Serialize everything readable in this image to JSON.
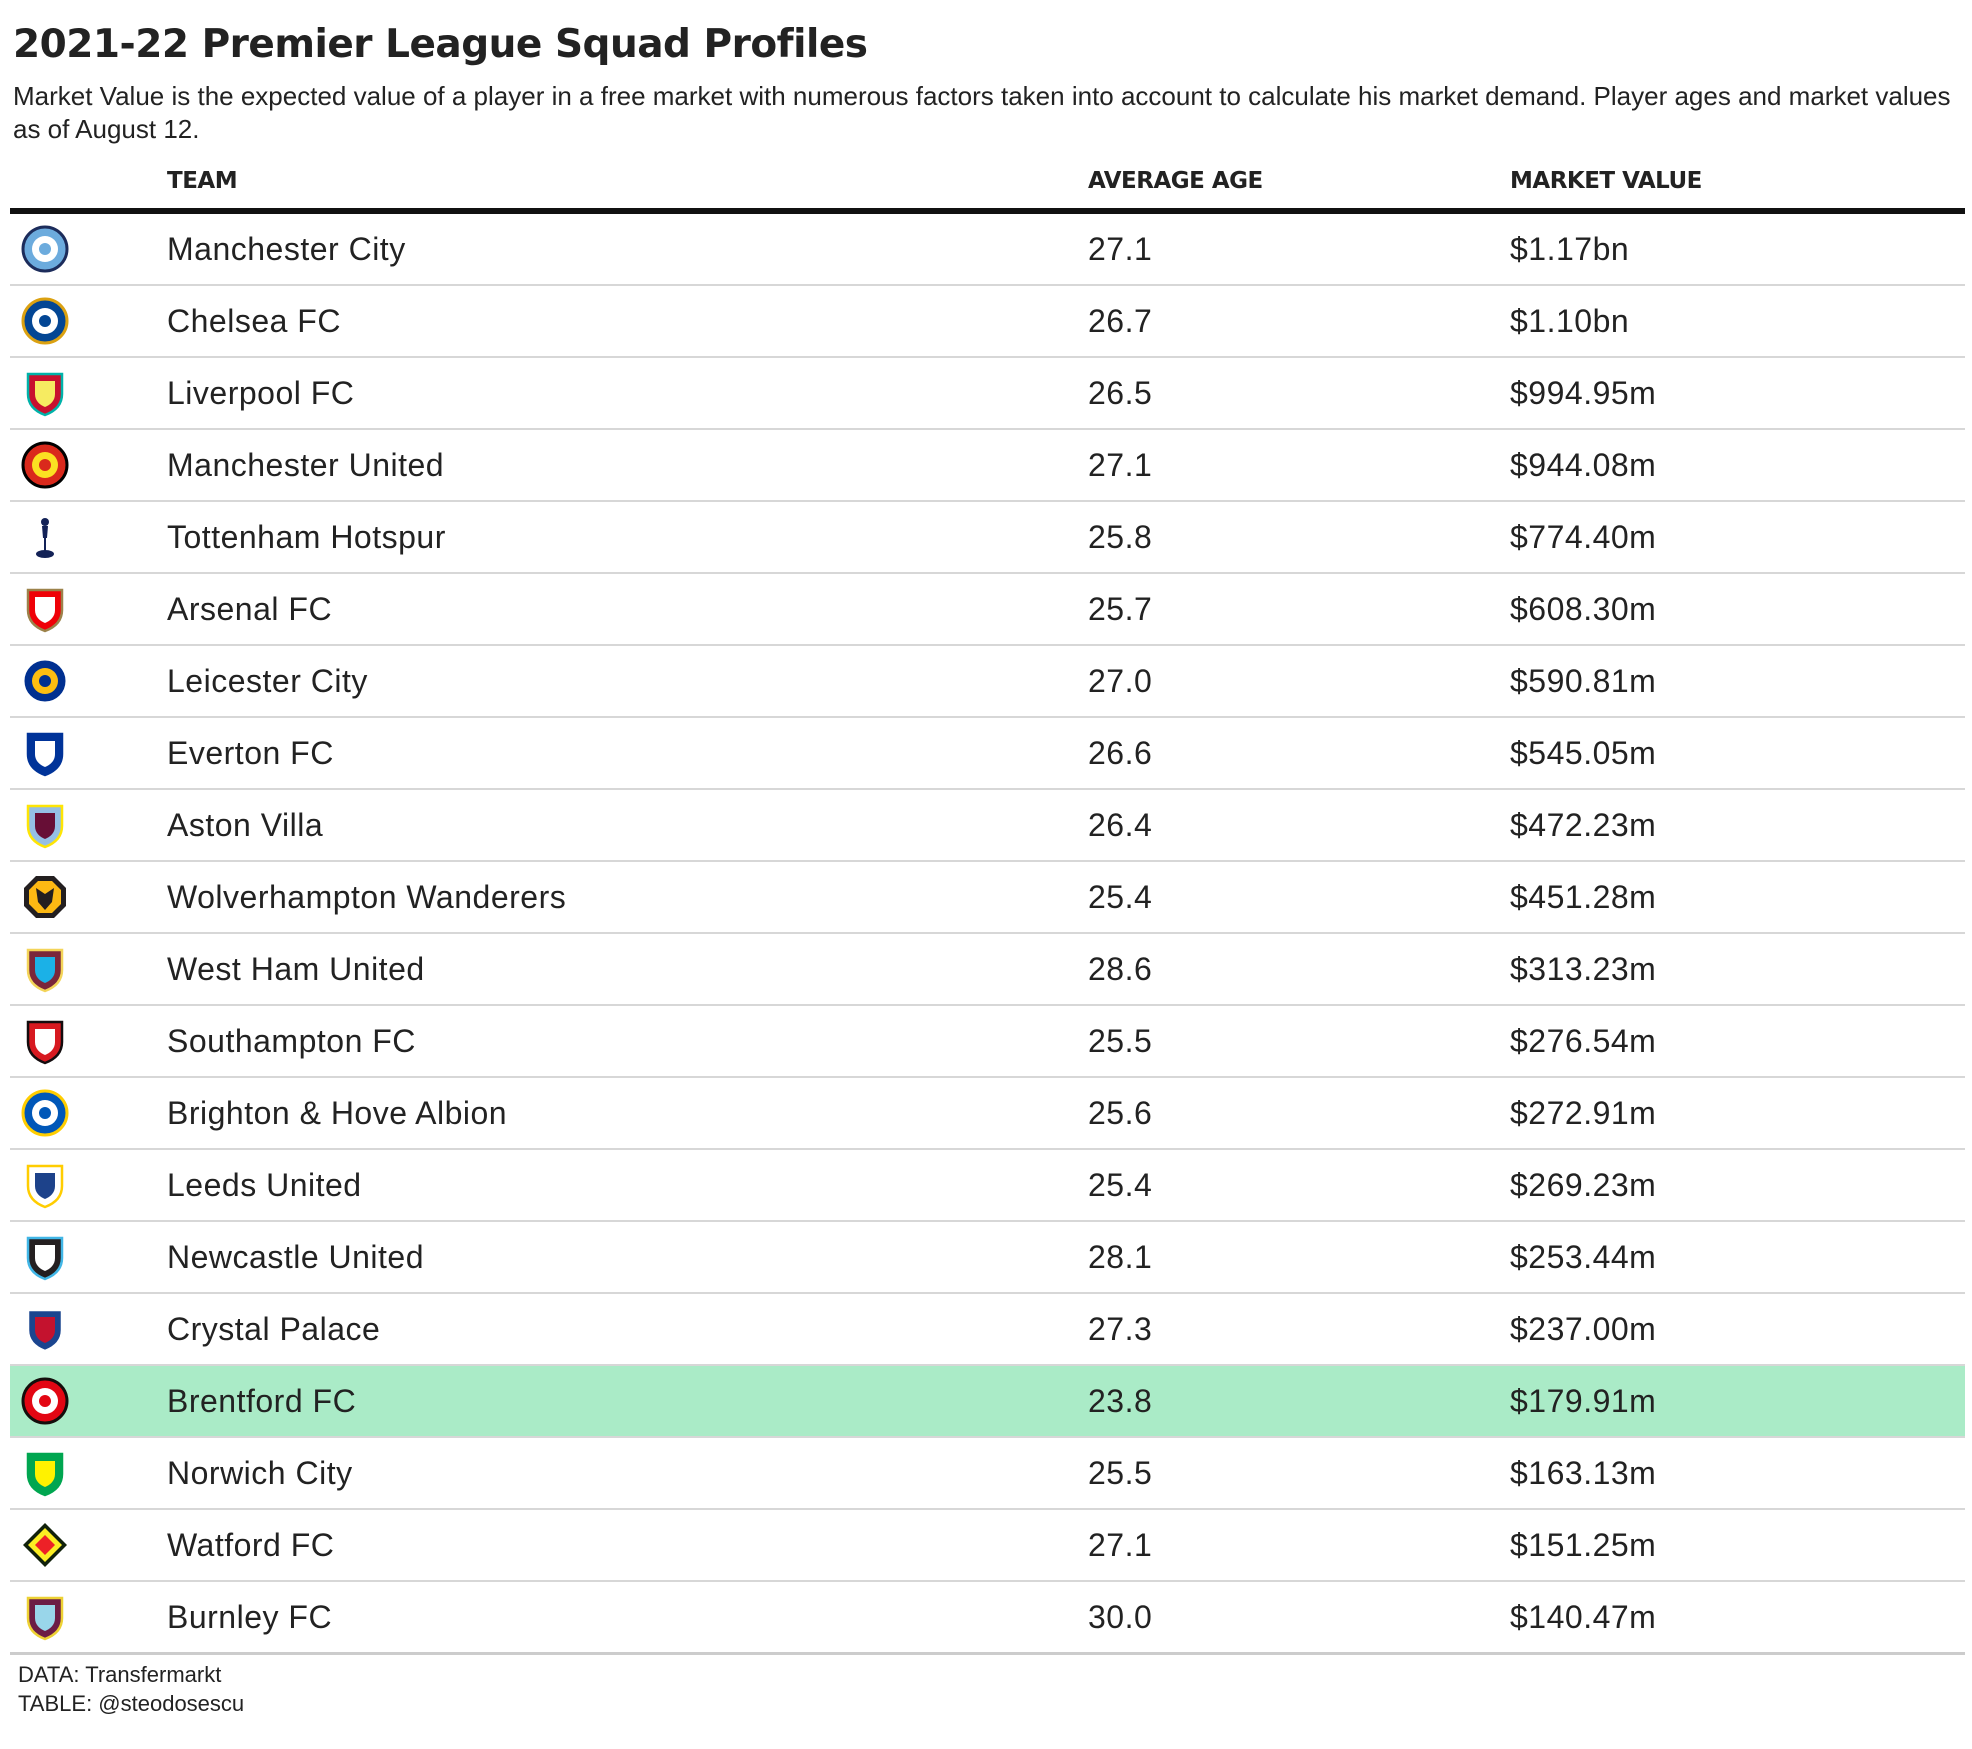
{
  "title": "2021-22 Premier League Squad Profiles",
  "subtitle": "Market Value is the expected value of a player in a free market with numerous factors taken into account to calculate his market demand. Player ages and market values as of August 12.",
  "columns": {
    "team": "TEAM",
    "age": "AVERAGE AGE",
    "market_value": "MARKET VALUE"
  },
  "highlight_color": "#aaebc7",
  "rows": [
    {
      "team": "Manchester City",
      "age": "27.1",
      "market_value": "$1.17bn",
      "icon": "manchester-city-crest-icon",
      "colors": [
        "#6cabdd",
        "#ffffff",
        "#1c2c5b"
      ],
      "shape": "circle",
      "highlight": false
    },
    {
      "team": "Chelsea FC",
      "age": "26.7",
      "market_value": "$1.10bn",
      "icon": "chelsea-crest-icon",
      "colors": [
        "#034694",
        "#ffffff",
        "#dba111"
      ],
      "shape": "circle",
      "highlight": false
    },
    {
      "team": "Liverpool FC",
      "age": "26.5",
      "market_value": "$994.95m",
      "icon": "liverpool-crest-icon",
      "colors": [
        "#c8102e",
        "#f6eb61",
        "#00b2a9"
      ],
      "shape": "shield",
      "highlight": false
    },
    {
      "team": "Manchester United",
      "age": "27.1",
      "market_value": "$944.08m",
      "icon": "manchester-united-crest-icon",
      "colors": [
        "#da291c",
        "#fbe122",
        "#000000"
      ],
      "shape": "circle",
      "highlight": false
    },
    {
      "team": "Tottenham Hotspur",
      "age": "25.8",
      "market_value": "$774.40m",
      "icon": "tottenham-cockerel-icon",
      "colors": [
        "#132257",
        "#ffffff",
        "#132257"
      ],
      "shape": "cockerel",
      "highlight": false
    },
    {
      "team": "Arsenal FC",
      "age": "25.7",
      "market_value": "$608.30m",
      "icon": "arsenal-crest-icon",
      "colors": [
        "#ef0107",
        "#ffffff",
        "#9c824a"
      ],
      "shape": "shield",
      "highlight": false
    },
    {
      "team": "Leicester City",
      "age": "27.0",
      "market_value": "$590.81m",
      "icon": "leicester-city-crest-icon",
      "colors": [
        "#003090",
        "#fdbe11",
        "#ffffff"
      ],
      "shape": "circle",
      "highlight": false
    },
    {
      "team": "Everton FC",
      "age": "26.6",
      "market_value": "$545.05m",
      "icon": "everton-crest-icon",
      "colors": [
        "#003399",
        "#ffffff",
        "#003399"
      ],
      "shape": "shield",
      "highlight": false
    },
    {
      "team": "Aston Villa",
      "age": "26.4",
      "market_value": "$472.23m",
      "icon": "aston-villa-crest-icon",
      "colors": [
        "#95bfe5",
        "#670e36",
        "#fee505"
      ],
      "shape": "shield",
      "highlight": false
    },
    {
      "team": "Wolverhampton Wanderers",
      "age": "25.4",
      "market_value": "$451.28m",
      "icon": "wolves-crest-icon",
      "colors": [
        "#fdb913",
        "#231f20",
        "#fdb913"
      ],
      "shape": "octagon",
      "highlight": false
    },
    {
      "team": "West Ham United",
      "age": "28.6",
      "market_value": "$313.23m",
      "icon": "west-ham-crest-icon",
      "colors": [
        "#7a263a",
        "#1bb1e7",
        "#f3d459"
      ],
      "shape": "shield",
      "highlight": false
    },
    {
      "team": "Southampton FC",
      "age": "25.5",
      "market_value": "$276.54m",
      "icon": "southampton-crest-icon",
      "colors": [
        "#d71920",
        "#ffffff",
        "#130c0e"
      ],
      "shape": "shield",
      "highlight": false
    },
    {
      "team": "Brighton & Hove Albion",
      "age": "25.6",
      "market_value": "$272.91m",
      "icon": "brighton-crest-icon",
      "colors": [
        "#0057b8",
        "#ffffff",
        "#ffcd00"
      ],
      "shape": "circle",
      "highlight": false
    },
    {
      "team": "Leeds United",
      "age": "25.4",
      "market_value": "$269.23m",
      "icon": "leeds-united-crest-icon",
      "colors": [
        "#ffffff",
        "#1d428a",
        "#ffcd00"
      ],
      "shape": "shield",
      "highlight": false
    },
    {
      "team": "Newcastle United",
      "age": "28.1",
      "market_value": "$253.44m",
      "icon": "newcastle-crest-icon",
      "colors": [
        "#241f20",
        "#ffffff",
        "#41b6e6"
      ],
      "shape": "shield",
      "highlight": false
    },
    {
      "team": "Crystal Palace",
      "age": "27.3",
      "market_value": "$237.00m",
      "icon": "crystal-palace-crest-icon",
      "colors": [
        "#1b458f",
        "#c4122e",
        "#ffffff"
      ],
      "shape": "shield",
      "highlight": false
    },
    {
      "team": "Brentford FC",
      "age": "23.8",
      "market_value": "$179.91m",
      "icon": "brentford-crest-icon",
      "colors": [
        "#e30613",
        "#ffffff",
        "#140e0c"
      ],
      "shape": "circle",
      "highlight": true
    },
    {
      "team": "Norwich City",
      "age": "25.5",
      "market_value": "$163.13m",
      "icon": "norwich-city-crest-icon",
      "colors": [
        "#00a650",
        "#fff200",
        "#00a650"
      ],
      "shape": "shield",
      "highlight": false
    },
    {
      "team": "Watford FC",
      "age": "27.1",
      "market_value": "$151.25m",
      "icon": "watford-crest-icon",
      "colors": [
        "#fbee23",
        "#ed2127",
        "#11210c"
      ],
      "shape": "diamond",
      "highlight": false
    },
    {
      "team": "Burnley FC",
      "age": "30.0",
      "market_value": "$140.47m",
      "icon": "burnley-crest-icon",
      "colors": [
        "#6c1d45",
        "#99d6ea",
        "#edd134"
      ],
      "shape": "shield",
      "highlight": false
    }
  ],
  "footer": {
    "data_source": "DATA: Transfermarkt",
    "credit": "TABLE: @steodosescu"
  },
  "chart_data": {
    "type": "table",
    "title": "2021-22 Premier League Squad Profiles",
    "subtitle": "Market Value is the expected value of a player in a free market with numerous factors taken into account to calculate his market demand. Player ages and market values as of August 12.",
    "columns": [
      "TEAM",
      "AVERAGE AGE",
      "MARKET VALUE"
    ],
    "rows": [
      [
        "Manchester City",
        27.1,
        "$1.17bn"
      ],
      [
        "Chelsea FC",
        26.7,
        "$1.10bn"
      ],
      [
        "Liverpool FC",
        26.5,
        "$994.95m"
      ],
      [
        "Manchester United",
        27.1,
        "$944.08m"
      ],
      [
        "Tottenham Hotspur",
        25.8,
        "$774.40m"
      ],
      [
        "Arsenal FC",
        25.7,
        "$608.30m"
      ],
      [
        "Leicester City",
        27.0,
        "$590.81m"
      ],
      [
        "Everton FC",
        26.6,
        "$545.05m"
      ],
      [
        "Aston Villa",
        26.4,
        "$472.23m"
      ],
      [
        "Wolverhampton Wanderers",
        25.4,
        "$451.28m"
      ],
      [
        "West Ham United",
        28.6,
        "$313.23m"
      ],
      [
        "Southampton FC",
        25.5,
        "$276.54m"
      ],
      [
        "Brighton & Hove Albion",
        25.6,
        "$272.91m"
      ],
      [
        "Leeds United",
        25.4,
        "$269.23m"
      ],
      [
        "Newcastle United",
        28.1,
        "$253.44m"
      ],
      [
        "Crystal Palace",
        27.3,
        "$237.00m"
      ],
      [
        "Brentford FC",
        23.8,
        "$179.91m"
      ],
      [
        "Norwich City",
        25.5,
        "$163.13m"
      ],
      [
        "Watford FC",
        27.1,
        "$151.25m"
      ],
      [
        "Burnley FC",
        30.0,
        "$140.47m"
      ]
    ],
    "highlighted_row": "Brentford FC",
    "source": "DATA: Transfermarkt",
    "credit": "TABLE: @steodosescu"
  }
}
